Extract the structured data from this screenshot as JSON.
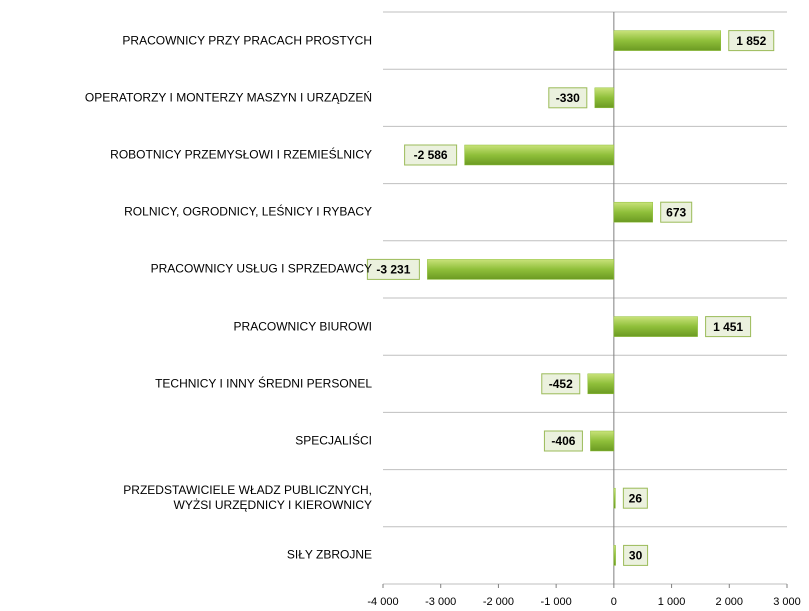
{
  "chart_data": {
    "type": "bar",
    "orientation": "horizontal",
    "categories": [
      "PRACOWNICY PRZY PRACACH PROSTYCH",
      "OPERATORZY I MONTERZY MASZYN I URZĄDZEŃ",
      "ROBOTNICY PRZEMYSŁOWI I RZEMIEŚLNICY",
      "ROLNICY, OGRODNICY, LEŚNICY I RYBACY",
      "PRACOWNICY USŁUG I SPRZEDAWCY",
      "PRACOWNICY BIUROWI",
      "TECHNICY I INNY ŚREDNI PERSONEL",
      "SPECJALIŚCI",
      "PRZEDSTAWICIELE WŁADZ PUBLICZNYCH,\nWYŻSI URZĘDNICY I KIEROWNICY",
      "SIŁY ZBROJNE"
    ],
    "values": [
      1852,
      -330,
      -2586,
      673,
      -3231,
      1451,
      -452,
      -406,
      26,
      30
    ],
    "value_labels": [
      "1 852",
      "-330",
      "-2 586",
      "673",
      "-3 231",
      "1 451",
      "-452",
      "-406",
      "26",
      "30"
    ],
    "color": "#8fbf3a",
    "xlim": [
      -4000,
      3000
    ],
    "xticks": [
      {
        "value": -4000,
        "label": "-4 000"
      },
      {
        "value": -3000,
        "label": "-3 000"
      },
      {
        "value": -2000,
        "label": "-2 000"
      },
      {
        "value": -1000,
        "label": "-1 000"
      },
      0,
      {
        "value": 1000,
        "label": "1 000"
      },
      {
        "value": 2000,
        "label": "2 000"
      },
      {
        "value": 3000,
        "label": "3 000"
      }
    ]
  }
}
